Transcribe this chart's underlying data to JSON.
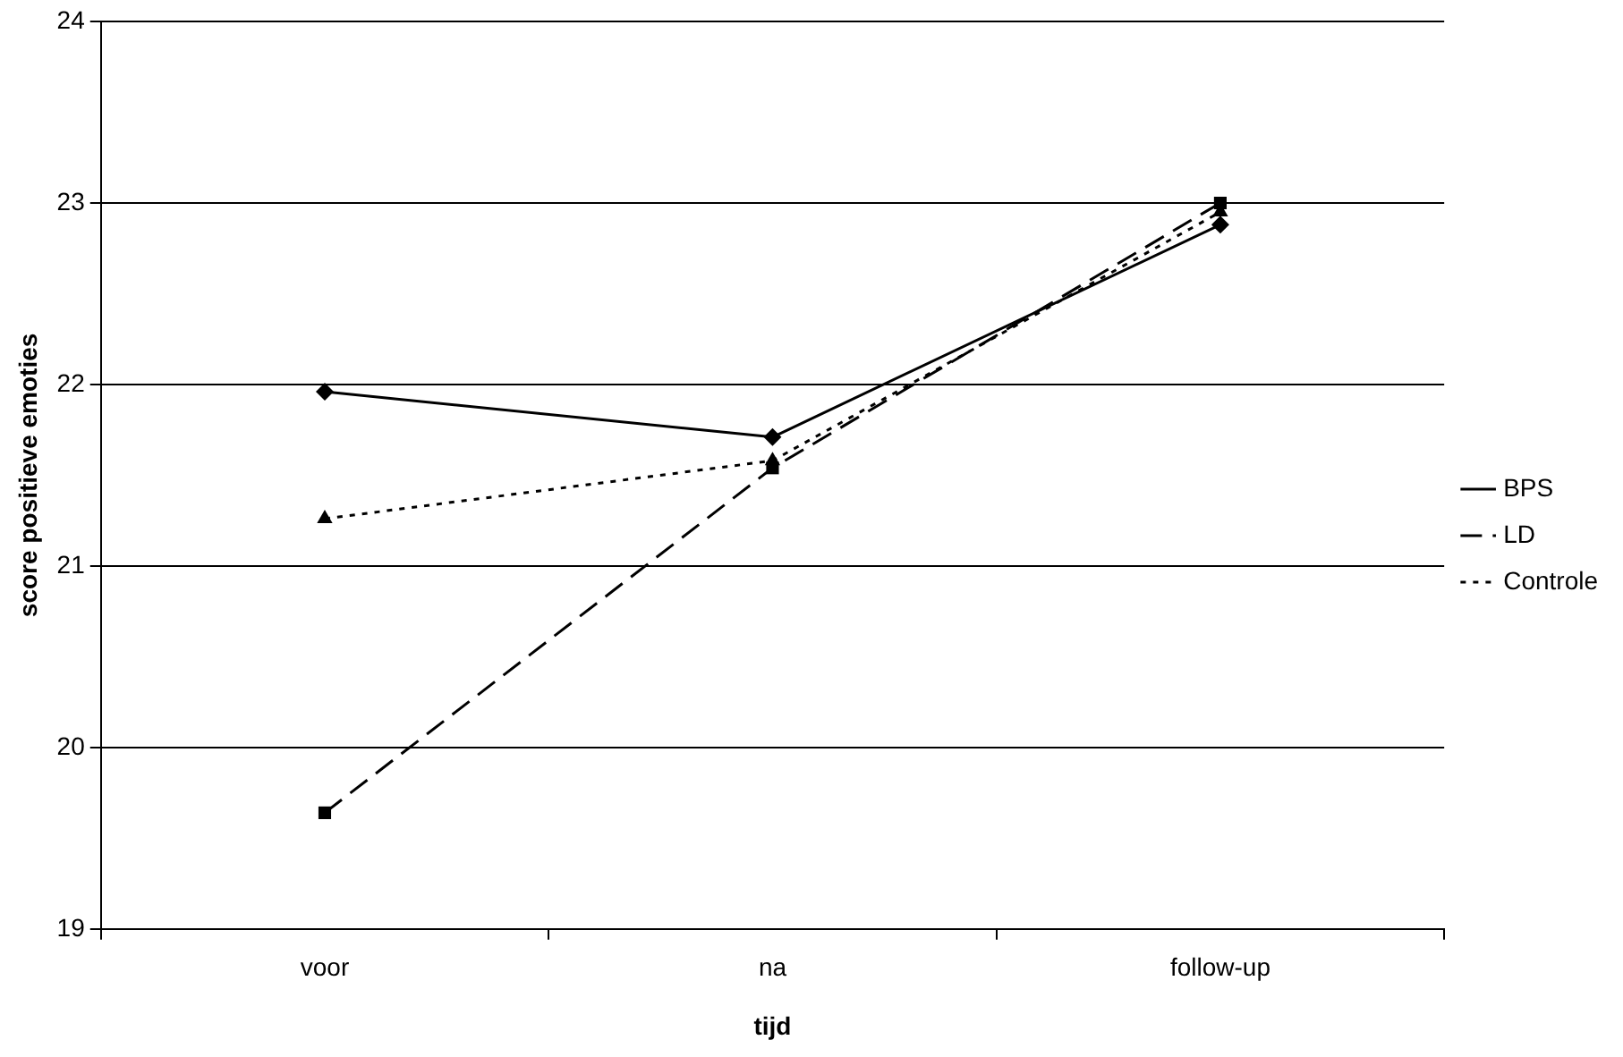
{
  "chart_data": {
    "type": "line",
    "xlabel": "tijd",
    "ylabel": "score positieve emoties",
    "categories": [
      "voor",
      "na",
      "follow-up"
    ],
    "series": [
      {
        "name": "BPS",
        "color": "#000000",
        "marker": "diamond",
        "line_style": "solid",
        "values": [
          21.96,
          21.71,
          22.88
        ]
      },
      {
        "name": "LD",
        "color": "#000000",
        "marker": "square",
        "line_style": "dashed",
        "values": [
          19.64,
          21.54,
          23.0
        ]
      },
      {
        "name": "Controle",
        "color": "#000000",
        "marker": "triangle",
        "line_style": "dotted",
        "values": [
          21.26,
          21.58,
          22.95
        ]
      }
    ],
    "ylim": [
      19,
      24
    ],
    "yticks": [
      19,
      20,
      21,
      22,
      23,
      24
    ],
    "grid": "y",
    "legend": "right"
  }
}
